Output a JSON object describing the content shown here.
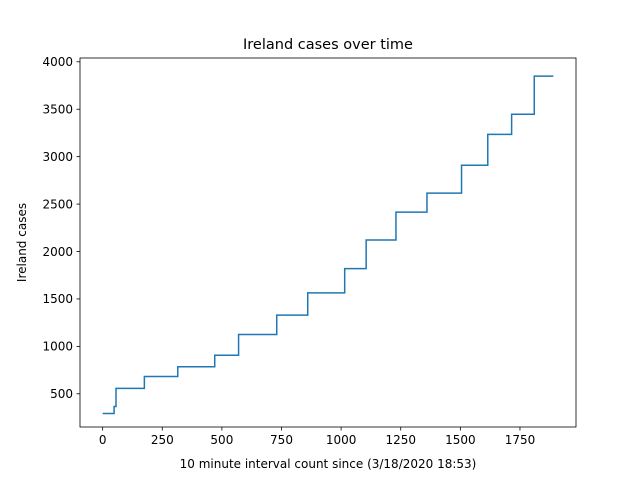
{
  "chart_data": {
    "type": "line",
    "title": "Ireland cases over time",
    "xlabel": "10 minute interval count since (3/18/2020 18:53)",
    "ylabel": "Ireland cases",
    "xlim": [
      -95,
      1985
    ],
    "ylim": [
      150,
      4040
    ],
    "xticks": [
      0,
      250,
      500,
      750,
      1000,
      1250,
      1500,
      1750
    ],
    "yticks": [
      500,
      1000,
      1500,
      2000,
      2500,
      3000,
      3500,
      4000
    ],
    "grid": false,
    "step": "post",
    "color": "#1f77b4",
    "series": [
      {
        "x": [
          0,
          48,
          52,
          56,
          175,
          315,
          470,
          570,
          730,
          860,
          1015,
          1105,
          1230,
          1360,
          1505,
          1615,
          1715,
          1810,
          1890
        ],
        "y": [
          292,
          366,
          366,
          557,
          683,
          785,
          906,
          1125,
          1329,
          1564,
          1819,
          2121,
          2415,
          2615,
          2910,
          3235,
          3447,
          3849,
          3849
        ]
      }
    ]
  }
}
